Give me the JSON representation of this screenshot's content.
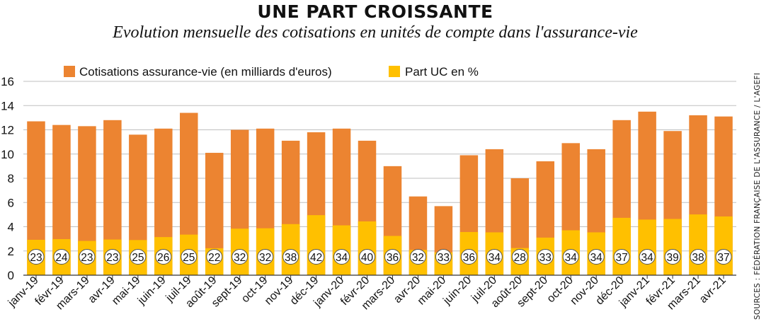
{
  "title": "UNE PART CROISSANTE",
  "subtitle": "Evolution mensuelle des cotisations en unités de compte dans l'assurance-vie",
  "source": "SOURCES : FÉDÉRATION FRANÇAISE DE L'ASSURANCE / L'AGEFI",
  "colors": {
    "total": "#EC8431",
    "uc": "#FFC000",
    "grid": "#bfbfbf",
    "axis": "#333333",
    "badge_border": "#555555"
  },
  "chart_data": {
    "type": "bar",
    "stacked": "overlay",
    "categories": [
      "janv-19",
      "févr-19",
      "mars-19",
      "avr-19",
      "mai-19",
      "juin-19",
      "juil-19",
      "août-19",
      "sept-19",
      "oct-19",
      "nov-19",
      "déc-19",
      "janv-20",
      "févr-20",
      "mars-20",
      "avr-20",
      "mai-20",
      "juin-20",
      "juil-20",
      "août-20",
      "sept-20",
      "oct-20",
      "nov-20",
      "déc-20",
      "janv-21",
      "févr-21",
      "mars-21",
      "avr-21"
    ],
    "series": [
      {
        "name": "Cotisations assurance-vie (en milliards d'euros)",
        "color": "#EC8431",
        "values": [
          12.7,
          12.4,
          12.3,
          12.8,
          11.6,
          12.1,
          13.4,
          10.1,
          12.0,
          12.1,
          11.1,
          11.8,
          12.1,
          11.1,
          9.0,
          6.5,
          5.7,
          9.9,
          10.4,
          8.0,
          9.4,
          10.9,
          10.4,
          12.8,
          13.5,
          11.9,
          13.2,
          13.1
        ]
      },
      {
        "name": "Part UC en %",
        "color": "#FFC000",
        "values": [
          23,
          24,
          23,
          23,
          25,
          26,
          25,
          22,
          32,
          32,
          38,
          42,
          34,
          40,
          36,
          32,
          33,
          36,
          34,
          28,
          33,
          34,
          34,
          37,
          34,
          39,
          38,
          37
        ]
      }
    ],
    "ylim": [
      0,
      16
    ],
    "yticks": [
      0,
      2,
      4,
      6,
      8,
      10,
      12,
      14,
      16
    ],
    "grid": true,
    "legend": "top"
  }
}
